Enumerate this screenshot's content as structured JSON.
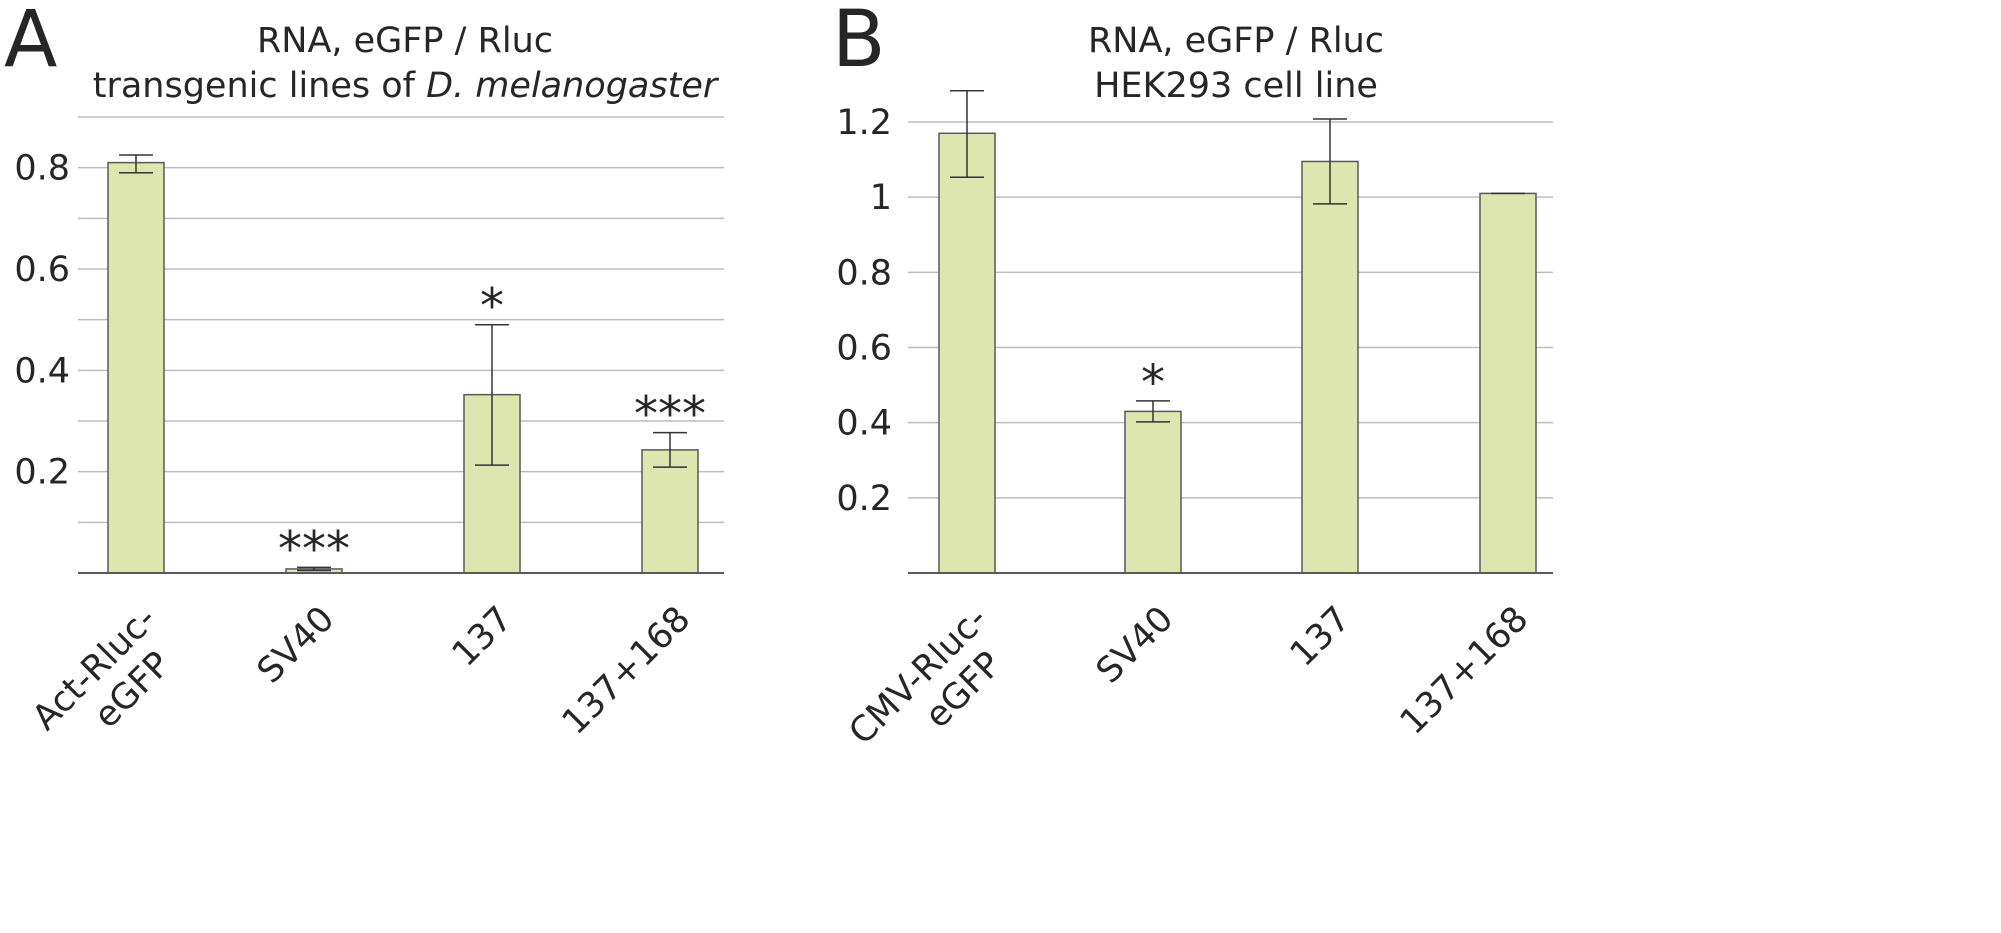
{
  "figure": {
    "panels": [
      {
        "letter": "A"
      },
      {
        "letter": "B"
      }
    ]
  },
  "chart_data": [
    {
      "panel": "A",
      "type": "bar",
      "title_line1": "RNA, eGFP / Rluc",
      "title_line2_prefix": "transgenic lines of ",
      "title_line2_italic": "D. melanogaster",
      "categories": [
        [
          "Act-Rluc-",
          "eGFP"
        ],
        [
          "SV40"
        ],
        [
          "137"
        ],
        [
          "137+168"
        ]
      ],
      "values": [
        0.81,
        0.008,
        0.352,
        0.243
      ],
      "error_low": [
        0.79,
        0.005,
        0.213,
        0.209
      ],
      "error_high": [
        0.825,
        0.011,
        0.49,
        0.277
      ],
      "significance": [
        "",
        "***",
        "*",
        "***"
      ],
      "ylim": [
        0,
        0.9
      ],
      "yticks": [
        0.2,
        0.4,
        0.6,
        0.8
      ],
      "ytick_labels": [
        "0.2",
        "0.4",
        "0.6",
        "0.8"
      ],
      "gridlines": [
        0.1,
        0.2,
        0.3,
        0.4,
        0.5,
        0.6,
        0.7,
        0.8,
        0.9
      ],
      "xlabel": "",
      "ylabel": ""
    },
    {
      "panel": "B",
      "type": "bar",
      "title_line1": "RNA, eGFP / Rluc",
      "title_line2_prefix": "HEK293 cell line",
      "title_line2_italic": "",
      "categories": [
        [
          "CMV-Rluc-",
          "eGFP"
        ],
        [
          "SV40"
        ],
        [
          "137"
        ],
        [
          "137+168"
        ]
      ],
      "values": [
        1.17,
        0.43,
        1.095,
        1.01
      ],
      "error_low": [
        1.053,
        0.402,
        0.982,
        1.01
      ],
      "error_high": [
        1.283,
        0.458,
        1.208,
        1.01
      ],
      "significance": [
        "",
        "*",
        "",
        ""
      ],
      "ylim": [
        0,
        1.2
      ],
      "yticks": [
        0.2,
        0.4,
        0.6,
        0.8,
        1.0,
        1.2
      ],
      "ytick_labels": [
        "0.2",
        "0.4",
        "0.6",
        "0.8",
        "1",
        "1.2"
      ],
      "gridlines": [
        0.2,
        0.4,
        0.6,
        0.8,
        1.0,
        1.2
      ],
      "xlabel": "",
      "ylabel": ""
    }
  ]
}
